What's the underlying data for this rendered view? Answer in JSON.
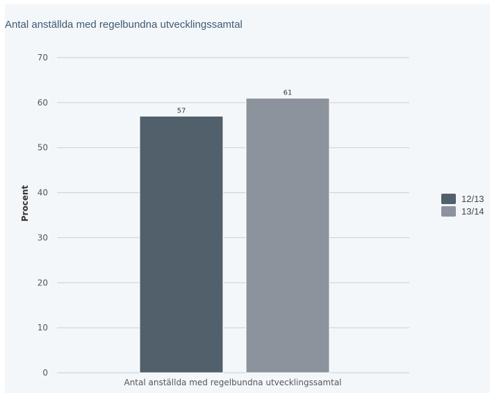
{
  "chart_data": {
    "type": "bar",
    "title": "Antal anställda med regelbundna utvecklingssamtal",
    "xlabel": "",
    "ylabel": "Procent",
    "categories": [
      "Antal anställda med regelbundna utvecklingssamtal"
    ],
    "series": [
      {
        "name": "12/13",
        "values": [
          57
        ],
        "color": "#51606b"
      },
      {
        "name": "13/14",
        "values": [
          61
        ],
        "color": "#8d939c"
      }
    ],
    "ylim": [
      0,
      70
    ],
    "yticks": [
      0,
      10,
      20,
      30,
      40,
      50,
      60,
      70
    ],
    "grid": true,
    "legend_position": "right"
  }
}
